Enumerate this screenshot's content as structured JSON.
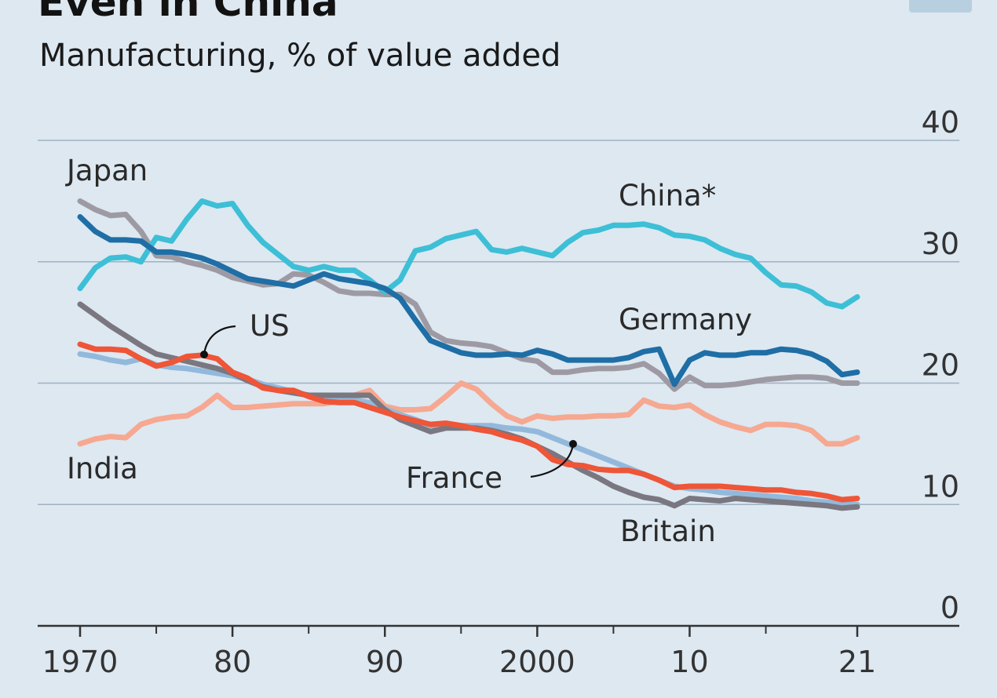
{
  "header": {
    "title": "Even in China",
    "subtitle": "Manufacturing, % of value added"
  },
  "chart_data": {
    "type": "line",
    "title": "Even in China",
    "subtitle": "Manufacturing, % of value added",
    "xlabel": "",
    "ylabel": "",
    "xlim": [
      1970,
      2021
    ],
    "ylim": [
      0,
      40
    ],
    "x_ticks": [
      1970,
      1980,
      1990,
      2000,
      2010,
      2021
    ],
    "x_tick_labels": [
      "1970",
      "80",
      "90",
      "2000",
      "10",
      "21"
    ],
    "y_ticks": [
      0,
      10,
      20,
      30,
      40
    ],
    "y_tick_labels": [
      "0",
      "10",
      "20",
      "30",
      "40"
    ],
    "grid": true,
    "legend": "inline labels",
    "series": [
      {
        "name": "China*",
        "color": "#3dbfd6",
        "x": [
          1970,
          1971,
          1972,
          1973,
          1974,
          1975,
          1976,
          1977,
          1978,
          1979,
          1980,
          1981,
          1982,
          1983,
          1984,
          1985,
          1986,
          1987,
          1988,
          1989,
          1990,
          1991,
          1992,
          1993,
          1994,
          1995,
          1996,
          1997,
          1998,
          1999,
          2000,
          2001,
          2002,
          2003,
          2004,
          2005,
          2006,
          2007,
          2008,
          2009,
          2010,
          2011,
          2012,
          2013,
          2014,
          2015,
          2016,
          2017,
          2018,
          2019,
          2020,
          2021
        ],
        "values": [
          27.8,
          29.5,
          30.3,
          30.4,
          30.0,
          32.0,
          31.7,
          33.5,
          35.0,
          34.6,
          34.8,
          33.0,
          31.6,
          30.6,
          29.6,
          29.3,
          29.6,
          29.3,
          29.3,
          28.5,
          27.5,
          28.5,
          30.9,
          31.2,
          31.9,
          32.2,
          32.5,
          31.0,
          30.8,
          31.1,
          30.8,
          30.5,
          31.6,
          32.4,
          32.6,
          33.0,
          33.0,
          33.1,
          32.8,
          32.2,
          32.1,
          31.8,
          31.1,
          30.6,
          30.3,
          29.1,
          28.1,
          28.0,
          27.5,
          26.6,
          26.3,
          27.1
        ]
      },
      {
        "name": "Japan",
        "color": "#9e9aa3",
        "x": [
          1970,
          1971,
          1972,
          1973,
          1974,
          1975,
          1976,
          1977,
          1978,
          1979,
          1980,
          1981,
          1982,
          1983,
          1984,
          1985,
          1986,
          1987,
          1988,
          1989,
          1990,
          1991,
          1992,
          1993,
          1994,
          1995,
          1996,
          1997,
          1998,
          1999,
          2000,
          2001,
          2002,
          2003,
          2004,
          2005,
          2006,
          2007,
          2008,
          2009,
          2010,
          2011,
          2012,
          2013,
          2014,
          2015,
          2016,
          2017,
          2018,
          2019,
          2020,
          2021
        ],
        "values": [
          35.0,
          34.3,
          33.8,
          33.9,
          32.5,
          30.5,
          30.4,
          30.0,
          29.7,
          29.3,
          28.7,
          28.4,
          28.1,
          28.2,
          29.0,
          28.9,
          28.3,
          27.6,
          27.4,
          27.4,
          27.3,
          27.3,
          26.5,
          24.2,
          23.5,
          23.3,
          23.2,
          23.0,
          22.5,
          22.0,
          21.8,
          20.9,
          20.9,
          21.1,
          21.2,
          21.2,
          21.3,
          21.6,
          20.8,
          19.5,
          20.5,
          19.8,
          19.8,
          19.9,
          20.1,
          20.3,
          20.4,
          20.5,
          20.5,
          20.4,
          20.0,
          20.0
        ]
      },
      {
        "name": "Germany",
        "color": "#1f6ea5",
        "x": [
          1970,
          1971,
          1972,
          1973,
          1974,
          1975,
          1976,
          1977,
          1978,
          1979,
          1980,
          1981,
          1982,
          1983,
          1984,
          1985,
          1986,
          1987,
          1988,
          1989,
          1990,
          1991,
          1992,
          1993,
          1994,
          1995,
          1996,
          1997,
          1998,
          1999,
          2000,
          2001,
          2002,
          2003,
          2004,
          2005,
          2006,
          2007,
          2008,
          2009,
          2010,
          2011,
          2012,
          2013,
          2014,
          2015,
          2016,
          2017,
          2018,
          2019,
          2020,
          2021
        ],
        "values": [
          33.7,
          32.5,
          31.8,
          31.8,
          31.7,
          30.8,
          30.8,
          30.6,
          30.3,
          29.8,
          29.2,
          28.6,
          28.4,
          28.2,
          28.0,
          28.5,
          29.0,
          28.6,
          28.4,
          28.2,
          27.8,
          27.0,
          25.2,
          23.5,
          23.0,
          22.5,
          22.3,
          22.3,
          22.4,
          22.3,
          22.7,
          22.4,
          21.9,
          21.9,
          21.9,
          21.9,
          22.1,
          22.6,
          22.8,
          19.9,
          21.9,
          22.5,
          22.3,
          22.3,
          22.5,
          22.5,
          22.8,
          22.7,
          22.4,
          21.8,
          20.7,
          20.9
        ]
      },
      {
        "name": "US",
        "color": "#ef5537",
        "x": [
          1970,
          1971,
          1972,
          1973,
          1974,
          1975,
          1976,
          1977,
          1978,
          1979,
          1980,
          1981,
          1982,
          1983,
          1984,
          1985,
          1986,
          1987,
          1988,
          1989,
          1990,
          1991,
          1992,
          1993,
          1994,
          1995,
          1996,
          1997,
          1998,
          1999,
          2000,
          2001,
          2002,
          2003,
          2004,
          2005,
          2006,
          2007,
          2008,
          2009,
          2010,
          2011,
          2012,
          2013,
          2014,
          2015,
          2016,
          2017,
          2018,
          2019,
          2020,
          2021
        ],
        "values": [
          23.2,
          22.8,
          22.8,
          22.7,
          22.0,
          21.4,
          21.7,
          22.2,
          22.3,
          22.0,
          20.9,
          20.4,
          19.6,
          19.4,
          19.4,
          18.9,
          18.5,
          18.4,
          18.4,
          18.0,
          17.6,
          17.2,
          16.9,
          16.6,
          16.7,
          16.5,
          16.2,
          16.0,
          15.6,
          15.3,
          14.8,
          13.7,
          13.3,
          13.2,
          12.9,
          12.8,
          12.8,
          12.5,
          12.0,
          11.4,
          11.5,
          11.5,
          11.5,
          11.4,
          11.3,
          11.2,
          11.2,
          11.0,
          10.9,
          10.7,
          10.4,
          10.5
        ]
      },
      {
        "name": "France",
        "color": "#92b9db",
        "x": [
          1970,
          1971,
          1972,
          1973,
          1974,
          1975,
          1976,
          1977,
          1978,
          1979,
          1980,
          1981,
          1982,
          1983,
          1984,
          1985,
          1986,
          1987,
          1988,
          1989,
          1990,
          1991,
          1992,
          1993,
          1994,
          1995,
          1996,
          1997,
          1998,
          1999,
          2000,
          2001,
          2002,
          2003,
          2004,
          2005,
          2006,
          2007,
          2008,
          2009,
          2010,
          2011,
          2012,
          2013,
          2014,
          2015,
          2016,
          2017,
          2018,
          2019,
          2020,
          2021
        ],
        "values": [
          22.4,
          22.2,
          21.9,
          21.7,
          22.0,
          21.5,
          21.3,
          21.2,
          21.0,
          20.8,
          20.6,
          20.3,
          19.9,
          19.6,
          19.3,
          19.0,
          18.9,
          18.8,
          18.6,
          18.4,
          17.9,
          17.4,
          17.0,
          16.5,
          16.4,
          16.5,
          16.5,
          16.5,
          16.3,
          16.2,
          16.0,
          15.5,
          15.0,
          14.5,
          14.0,
          13.5,
          13.0,
          12.5,
          12.0,
          11.5,
          11.3,
          11.2,
          11.0,
          10.9,
          10.8,
          10.7,
          10.6,
          10.5,
          10.3,
          10.2,
          10.1,
          10.0
        ]
      },
      {
        "name": "Britain",
        "color": "#7a7780",
        "x": [
          1970,
          1971,
          1972,
          1973,
          1974,
          1975,
          1976,
          1977,
          1978,
          1979,
          1980,
          1981,
          1982,
          1983,
          1984,
          1985,
          1986,
          1987,
          1988,
          1989,
          1990,
          1991,
          1992,
          1993,
          1994,
          1995,
          1996,
          1997,
          1998,
          1999,
          2000,
          2001,
          2002,
          2003,
          2004,
          2005,
          2006,
          2007,
          2008,
          2009,
          2010,
          2011,
          2012,
          2013,
          2014,
          2015,
          2016,
          2017,
          2018,
          2019,
          2020,
          2021
        ],
        "values": [
          26.5,
          25.6,
          24.7,
          23.9,
          23.1,
          22.4,
          22.1,
          21.8,
          21.5,
          21.2,
          20.8,
          20.2,
          19.7,
          19.4,
          19.2,
          19.0,
          19.0,
          19.0,
          19.0,
          19.0,
          17.8,
          17.0,
          16.5,
          16.0,
          16.3,
          16.3,
          16.3,
          16.1,
          15.8,
          15.4,
          14.8,
          14.2,
          13.5,
          12.8,
          12.2,
          11.5,
          11.0,
          10.6,
          10.4,
          9.9,
          10.5,
          10.4,
          10.3,
          10.5,
          10.4,
          10.3,
          10.2,
          10.1,
          10.0,
          9.9,
          9.7,
          9.8
        ]
      },
      {
        "name": "India",
        "color": "#f6a891",
        "x": [
          1970,
          1971,
          1972,
          1973,
          1974,
          1975,
          1976,
          1977,
          1978,
          1979,
          1980,
          1981,
          1982,
          1983,
          1984,
          1985,
          1986,
          1987,
          1988,
          1989,
          1990,
          1991,
          1992,
          1993,
          1994,
          1995,
          1996,
          1997,
          1998,
          1999,
          2000,
          2001,
          2002,
          2003,
          2004,
          2005,
          2006,
          2007,
          2008,
          2009,
          2010,
          2011,
          2012,
          2013,
          2014,
          2015,
          2016,
          2017,
          2018,
          2019,
          2020,
          2021
        ],
        "values": [
          15.0,
          15.4,
          15.6,
          15.5,
          16.6,
          17.0,
          17.2,
          17.3,
          18.0,
          19.0,
          18.0,
          18.0,
          18.1,
          18.2,
          18.3,
          18.3,
          18.3,
          18.5,
          19.0,
          19.4,
          18.1,
          17.8,
          17.8,
          17.9,
          18.9,
          20.0,
          19.5,
          18.3,
          17.3,
          16.8,
          17.3,
          17.1,
          17.2,
          17.2,
          17.3,
          17.3,
          17.4,
          18.6,
          18.1,
          18.0,
          18.2,
          17.4,
          16.8,
          16.4,
          16.1,
          16.6,
          16.6,
          16.5,
          16.1,
          15.0,
          15.0,
          15.5
        ]
      }
    ],
    "labels": [
      {
        "text": "Japan",
        "series": "Japan"
      },
      {
        "text": "China*",
        "series": "China*"
      },
      {
        "text": "Germany",
        "series": "Germany"
      },
      {
        "text": "US",
        "series": "US"
      },
      {
        "text": "India",
        "series": "India"
      },
      {
        "text": "France",
        "series": "France"
      },
      {
        "text": "Britain",
        "series": "Britain"
      }
    ]
  }
}
